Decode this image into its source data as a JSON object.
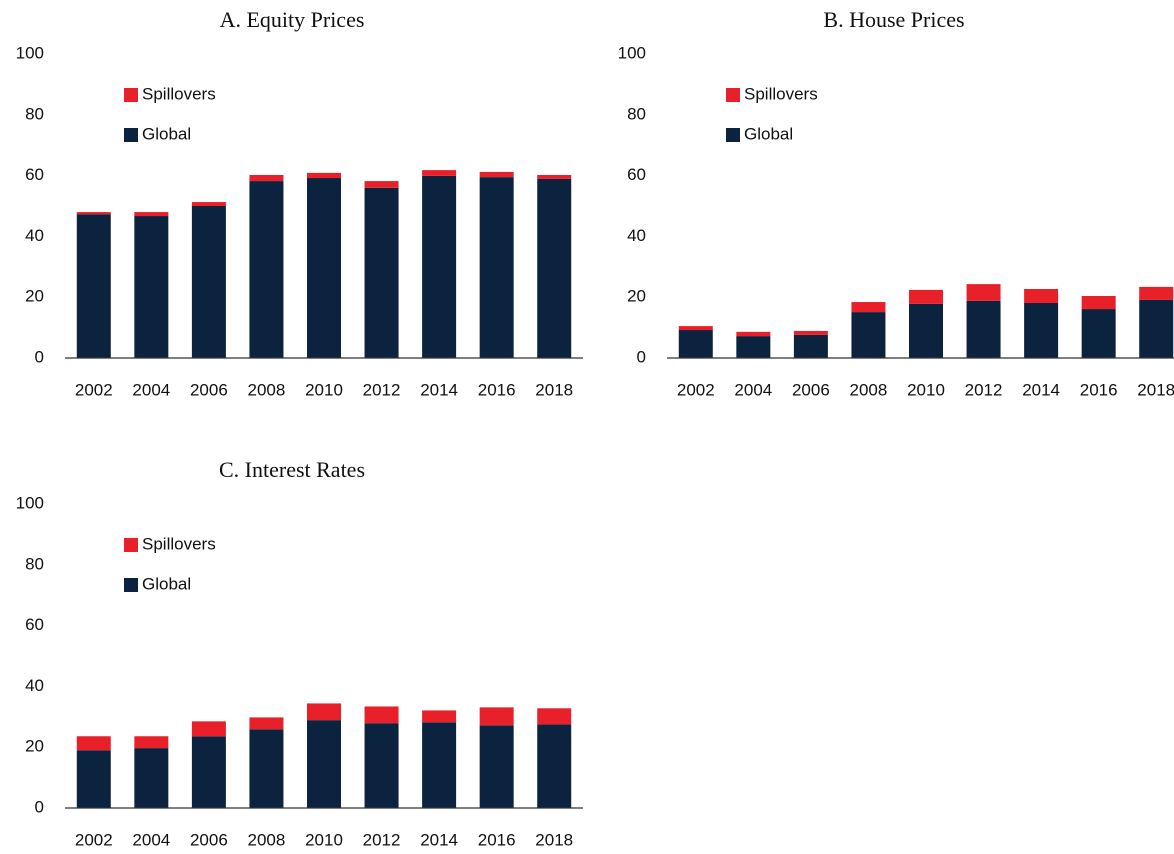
{
  "chart_data": [
    {
      "type": "bar",
      "stacked": true,
      "title": "A. Equity Prices",
      "categories": [
        "2002",
        "2004",
        "2006",
        "2008",
        "2010",
        "2012",
        "2014",
        "2016",
        "2018"
      ],
      "series": [
        {
          "name": "Global",
          "color": "#0c2340",
          "values": [
            47.3,
            46.7,
            50,
            58.2,
            59.2,
            56,
            59.9,
            59.5,
            58.9
          ]
        },
        {
          "name": "Spillovers",
          "color": "#e8202a",
          "values": [
            0.7,
            1.3,
            1.3,
            2,
            1.7,
            2.2,
            1.9,
            1.7,
            1.3
          ]
        }
      ],
      "ylim": [
        0,
        100
      ],
      "yticks": [
        0,
        20,
        40,
        60,
        80,
        100
      ],
      "legend": "upper left"
    },
    {
      "type": "bar",
      "stacked": true,
      "title": "B. House Prices",
      "categories": [
        "2002",
        "2004",
        "2006",
        "2008",
        "2010",
        "2012",
        "2014",
        "2016",
        "2018"
      ],
      "series": [
        {
          "name": "Global",
          "color": "#0c2340",
          "values": [
            9.2,
            7.2,
            7.6,
            15.1,
            17.8,
            18.8,
            18.1,
            16.1,
            19.1
          ]
        },
        {
          "name": "Spillovers",
          "color": "#e8202a",
          "values": [
            1.3,
            1.4,
            1.3,
            3.3,
            4.6,
            5.5,
            4.6,
            4.3,
            4.3
          ]
        }
      ],
      "ylim": [
        0,
        100
      ],
      "yticks": [
        0,
        20,
        40,
        60,
        80,
        100
      ],
      "legend": "upper left"
    },
    {
      "type": "bar",
      "stacked": true,
      "title": "C. Interest Rates",
      "categories": [
        "2002",
        "2004",
        "2006",
        "2008",
        "2010",
        "2012",
        "2014",
        "2016",
        "2018"
      ],
      "series": [
        {
          "name": "Global",
          "color": "#0c2340",
          "values": [
            19,
            19.7,
            23.6,
            25.9,
            28.9,
            27.9,
            28.2,
            27.2,
            27.5
          ]
        },
        {
          "name": "Spillovers",
          "color": "#e8202a",
          "values": [
            4.6,
            3.9,
            4.9,
            3.9,
            5.5,
            5.5,
            3.9,
            5.9,
            5.3
          ]
        }
      ],
      "ylim": [
        0,
        100
      ],
      "yticks": [
        0,
        20,
        40,
        60,
        80,
        100
      ],
      "legend": "upper left"
    }
  ]
}
